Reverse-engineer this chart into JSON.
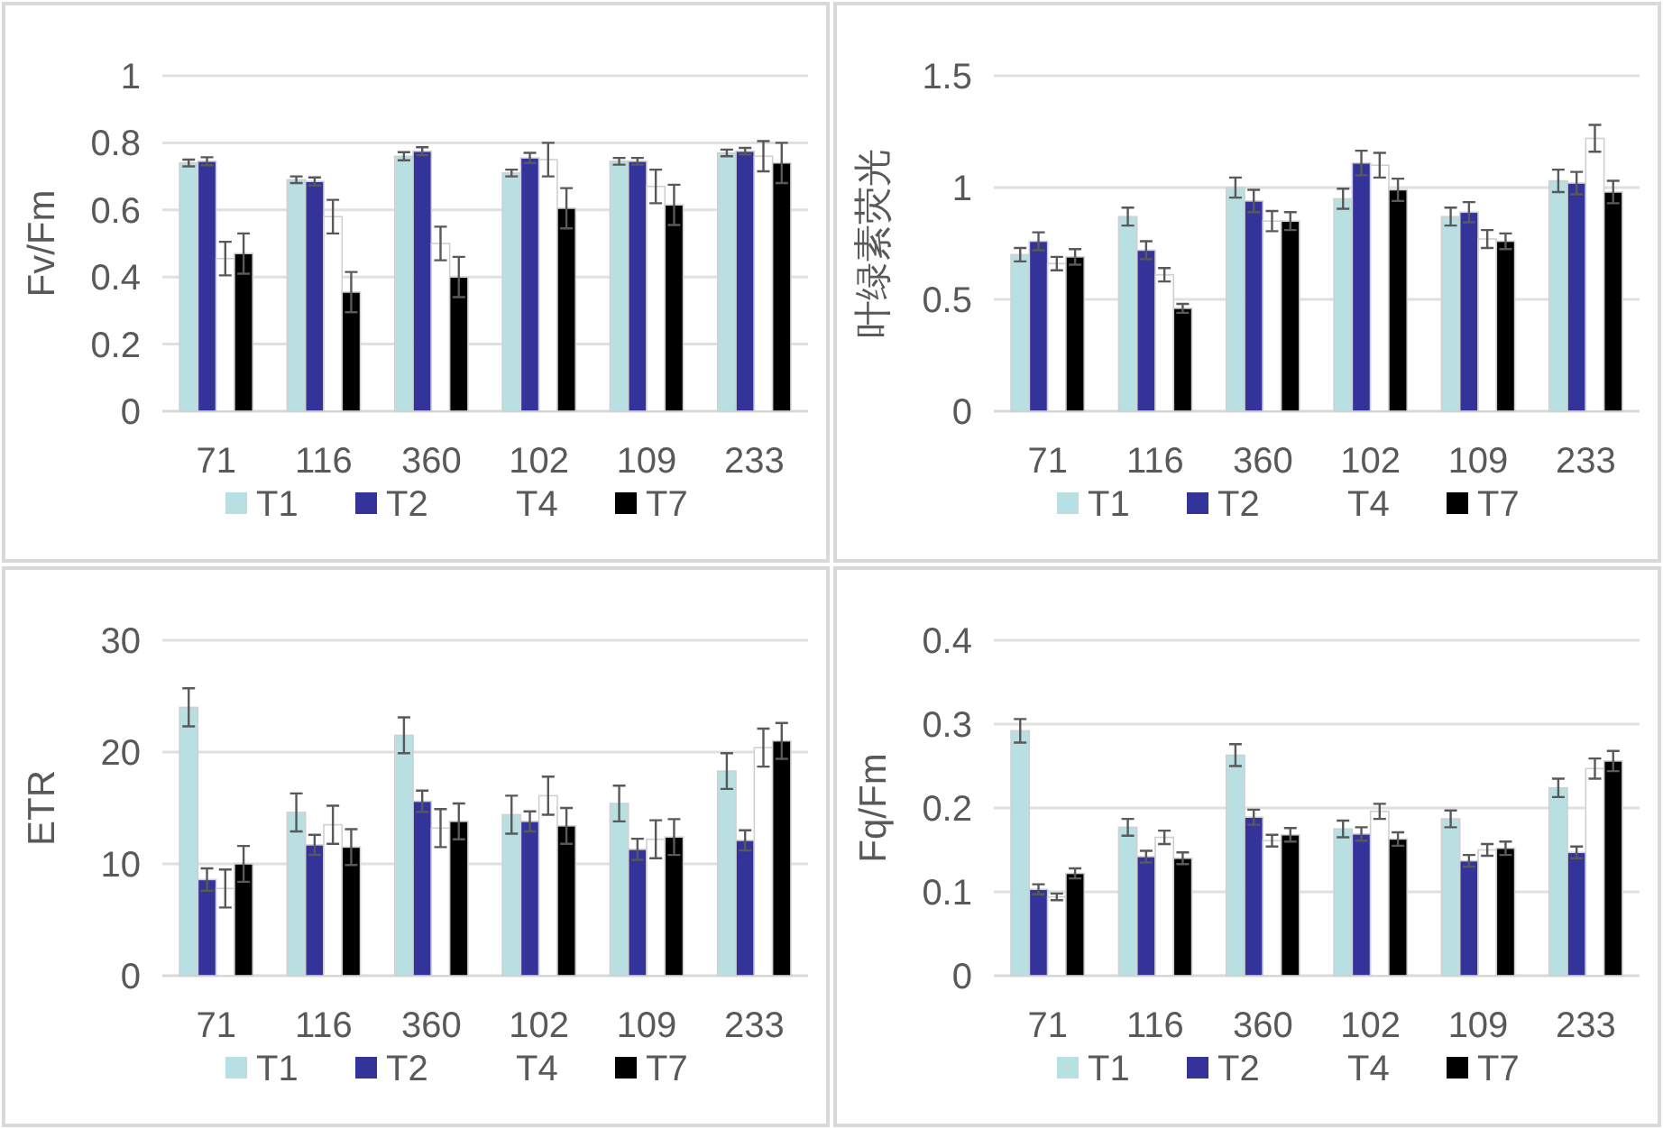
{
  "chart_data": [
    {
      "type": "bar",
      "ylabel": "Fv/Fm",
      "categories": [
        "71",
        "116",
        "360",
        "102",
        "109",
        "233"
      ],
      "ylim": [
        0,
        1
      ],
      "yticks": [
        0,
        0.2,
        0.4,
        0.6,
        0.8,
        1
      ],
      "grid": "y",
      "legend": "bottom",
      "series": [
        {
          "name": "T1",
          "color": "#b8e0e2",
          "values": [
            0.74,
            0.69,
            0.76,
            0.71,
            0.745,
            0.77
          ],
          "errors": [
            0.01,
            0.01,
            0.012,
            0.01,
            0.01,
            0.01
          ]
        },
        {
          "name": "T2",
          "color": "#333399",
          "values": [
            0.745,
            0.685,
            0.775,
            0.755,
            0.745,
            0.775
          ],
          "errors": [
            0.012,
            0.012,
            0.012,
            0.015,
            0.01,
            0.01
          ]
        },
        {
          "name": "T4",
          "color": "#ffffff",
          "values": [
            0.455,
            0.58,
            0.5,
            0.75,
            0.67,
            0.76
          ],
          "errors": [
            0.05,
            0.05,
            0.05,
            0.05,
            0.05,
            0.045
          ]
        },
        {
          "name": "T7",
          "color": "#000000",
          "values": [
            0.47,
            0.355,
            0.4,
            0.605,
            0.615,
            0.74
          ],
          "errors": [
            0.06,
            0.06,
            0.06,
            0.06,
            0.06,
            0.06
          ]
        }
      ]
    },
    {
      "type": "bar",
      "ylabel": "叶绿素荧光",
      "categories": [
        "71",
        "116",
        "360",
        "102",
        "109",
        "233"
      ],
      "ylim": [
        0,
        1.5
      ],
      "yticks": [
        0,
        0.5,
        1,
        1.5
      ],
      "grid": "y",
      "legend": "bottom",
      "series": [
        {
          "name": "T1",
          "color": "#b8e0e2",
          "values": [
            0.7,
            0.87,
            1.0,
            0.95,
            0.87,
            1.03
          ],
          "errors": [
            0.03,
            0.04,
            0.045,
            0.045,
            0.04,
            0.05
          ]
        },
        {
          "name": "T2",
          "color": "#333399",
          "values": [
            0.76,
            0.72,
            0.94,
            1.11,
            0.89,
            1.02
          ],
          "errors": [
            0.04,
            0.04,
            0.05,
            0.055,
            0.045,
            0.05
          ]
        },
        {
          "name": "T4",
          "color": "#ffffff",
          "values": [
            0.66,
            0.61,
            0.85,
            1.1,
            0.77,
            1.22
          ],
          "errors": [
            0.03,
            0.03,
            0.045,
            0.055,
            0.04,
            0.06
          ]
        },
        {
          "name": "T7",
          "color": "#000000",
          "values": [
            0.69,
            0.46,
            0.85,
            0.99,
            0.76,
            0.98
          ],
          "errors": [
            0.035,
            0.02,
            0.04,
            0.05,
            0.035,
            0.05
          ]
        }
      ]
    },
    {
      "type": "bar",
      "ylabel": "ETR",
      "categories": [
        "71",
        "116",
        "360",
        "102",
        "109",
        "233"
      ],
      "ylim": [
        0,
        30
      ],
      "yticks": [
        0,
        10,
        20,
        30
      ],
      "grid": "y",
      "legend": "bottom",
      "series": [
        {
          "name": "T1",
          "color": "#b8e0e2",
          "values": [
            24.0,
            14.6,
            21.5,
            14.4,
            15.4,
            18.3
          ],
          "errors": [
            1.7,
            1.7,
            1.6,
            1.7,
            1.6,
            1.6
          ]
        },
        {
          "name": "T2",
          "color": "#333399",
          "values": [
            8.6,
            11.7,
            15.6,
            13.8,
            11.3,
            12.1
          ],
          "errors": [
            1.0,
            0.9,
            0.95,
            0.9,
            0.95,
            0.9
          ]
        },
        {
          "name": "T4",
          "color": "#ffffff",
          "values": [
            7.8,
            13.5,
            13.2,
            16.1,
            12.2,
            20.4
          ],
          "errors": [
            1.7,
            1.7,
            1.7,
            1.7,
            1.7,
            1.7
          ]
        },
        {
          "name": "T7",
          "color": "#000000",
          "values": [
            10.0,
            11.5,
            13.8,
            13.4,
            12.4,
            21.0
          ],
          "errors": [
            1.6,
            1.6,
            1.6,
            1.6,
            1.6,
            1.6
          ]
        }
      ]
    },
    {
      "type": "bar",
      "ylabel": "Fq/Fm",
      "categories": [
        "71",
        "116",
        "360",
        "102",
        "109",
        "233"
      ],
      "ylim": [
        0,
        0.4
      ],
      "yticks": [
        0,
        0.1,
        0.2,
        0.3,
        0.4
      ],
      "grid": "y",
      "legend": "bottom",
      "series": [
        {
          "name": "T1",
          "color": "#b8e0e2",
          "values": [
            0.292,
            0.177,
            0.263,
            0.175,
            0.187,
            0.224
          ],
          "errors": [
            0.014,
            0.01,
            0.013,
            0.01,
            0.01,
            0.011
          ]
        },
        {
          "name": "T2",
          "color": "#333399",
          "values": [
            0.103,
            0.142,
            0.189,
            0.169,
            0.137,
            0.147
          ],
          "errors": [
            0.006,
            0.007,
            0.009,
            0.008,
            0.007,
            0.007
          ]
        },
        {
          "name": "T4",
          "color": "#ffffff",
          "values": [
            0.094,
            0.165,
            0.161,
            0.196,
            0.15,
            0.247
          ],
          "errors": [
            0.004,
            0.008,
            0.007,
            0.009,
            0.007,
            0.012
          ]
        },
        {
          "name": "T7",
          "color": "#000000",
          "values": [
            0.122,
            0.14,
            0.168,
            0.163,
            0.152,
            0.256
          ],
          "errors": [
            0.006,
            0.007,
            0.008,
            0.008,
            0.008,
            0.012
          ]
        }
      ]
    }
  ]
}
